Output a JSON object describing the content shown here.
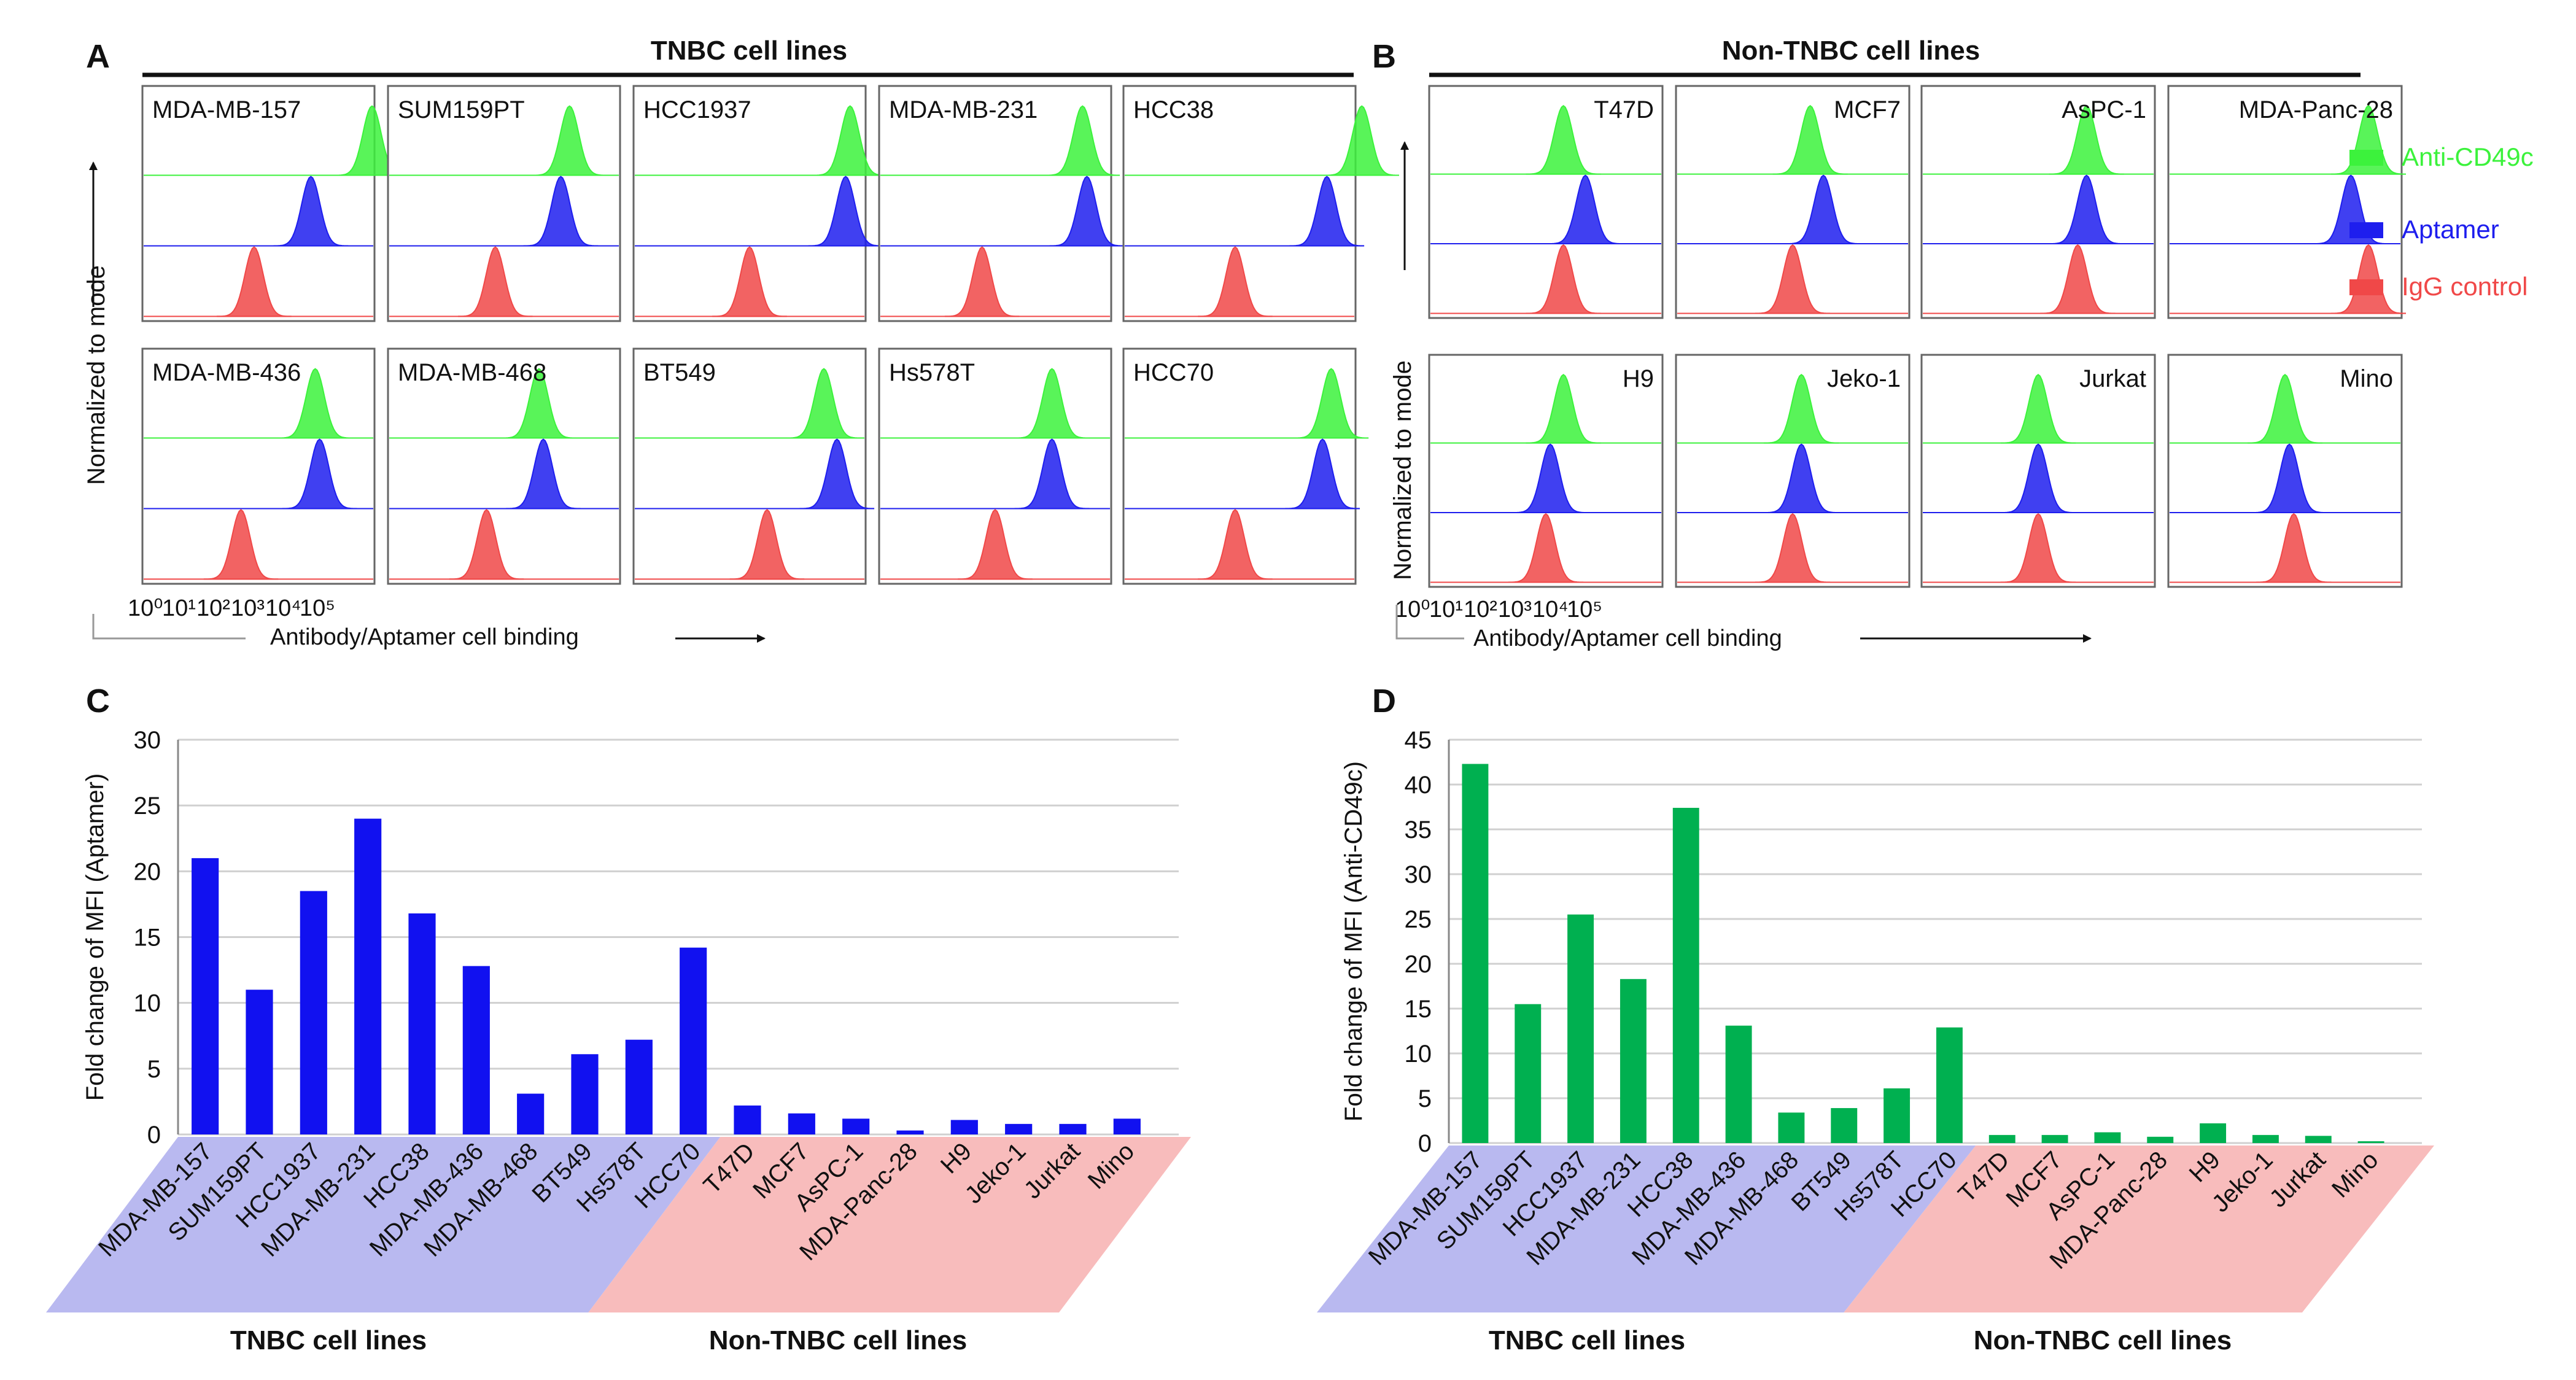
{
  "panel_letters": {
    "A": "A",
    "B": "B",
    "C": "C",
    "D": "D"
  },
  "colors": {
    "anti_cd49c": "#3cf23c",
    "aptamer": "#1e1eee",
    "igg": "#f04848",
    "bar_aptamer": "#1111f0",
    "bar_anti": "#00b050",
    "tnbc_band": "#b9b9f0",
    "nontnbc_band": "#f8bcbc"
  },
  "flow": {
    "tnbc_title": "TNBC cell lines",
    "nontnbc_title": "Non-TNBC cell lines",
    "ylabel": "Normalized to mode",
    "xlabel": "Antibody/Aptamer  cell binding",
    "x_ticks": [
      "10⁰",
      "10¹",
      "10²",
      "10³",
      "10⁴",
      "10⁵"
    ],
    "legend": [
      {
        "key": "anti",
        "label": "Anti-CD49c"
      },
      {
        "key": "apt",
        "label": "Aptamer"
      },
      {
        "key": "igg",
        "label": "IgG control"
      }
    ],
    "tnbc_cells": [
      {
        "name": "MDA-MB-157",
        "g": 5.2,
        "b": 3.8,
        "r": 2.5
      },
      {
        "name": "SUM159PT",
        "g": 4.1,
        "b": 3.9,
        "r": 2.4
      },
      {
        "name": "HCC1937",
        "g": 4.9,
        "b": 4.8,
        "r": 2.6
      },
      {
        "name": "MDA-MB-231",
        "g": 4.6,
        "b": 4.7,
        "r": 2.3
      },
      {
        "name": "HCC38",
        "g": 5.4,
        "b": 4.6,
        "r": 2.5
      },
      {
        "name": "MDA-MB-436",
        "g": 3.9,
        "b": 4.0,
        "r": 2.2
      },
      {
        "name": "MDA-MB-468",
        "g": 3.4,
        "b": 3.5,
        "r": 2.2
      },
      {
        "name": "BT549",
        "g": 4.3,
        "b": 4.6,
        "r": 3.0
      },
      {
        "name": "Hs578T",
        "g": 3.9,
        "b": 3.9,
        "r": 2.6
      },
      {
        "name": "HCC70",
        "g": 4.7,
        "b": 4.5,
        "r": 2.5
      }
    ],
    "nontnbc_cells": [
      {
        "name": "T47D",
        "g": 3.0,
        "b": 3.5,
        "r": 3.0
      },
      {
        "name": "MCF7",
        "g": 3.0,
        "b": 3.3,
        "r": 2.6
      },
      {
        "name": "AsPC-1",
        "g": 3.7,
        "b": 3.7,
        "r": 3.5
      },
      {
        "name": "MDA-Panc-28",
        "g": 4.5,
        "b": 4.1,
        "r": 4.5
      },
      {
        "name": "H9",
        "g": 3.0,
        "b": 2.7,
        "r": 2.6
      },
      {
        "name": "Jeko-1",
        "g": 2.8,
        "b": 2.8,
        "r": 2.6
      },
      {
        "name": "Jurkat",
        "g": 2.6,
        "b": 2.6,
        "r": 2.6
      },
      {
        "name": "Mino",
        "g": 2.6,
        "b": 2.7,
        "r": 2.8
      }
    ]
  },
  "chart_data": [
    {
      "type": "bar",
      "panel": "C",
      "title": "",
      "xlabel": "",
      "ylabel": "Fold change of MFI (Aptamer)",
      "ylim": [
        0,
        30
      ],
      "yticks": [
        0,
        5,
        10,
        15,
        20,
        25,
        30
      ],
      "categories": [
        "MDA-MB-157",
        "SUM159PT",
        "HCC1937",
        "MDA-MB-231",
        "HCC38",
        "MDA-MB-436",
        "MDA-MB-468",
        "BT549",
        "Hs578T",
        "HCC70",
        "T47D",
        "MCF7",
        "AsPC-1",
        "MDA-Panc-28",
        "H9",
        "Jeko-1",
        "Jurkat",
        "Mino"
      ],
      "values": [
        21.0,
        11.0,
        18.5,
        24.0,
        16.8,
        12.8,
        3.1,
        6.1,
        7.2,
        14.2,
        2.2,
        1.6,
        1.2,
        0.3,
        1.1,
        0.8,
        0.8,
        1.2
      ],
      "groups": [
        {
          "label": "TNBC cell lines",
          "count": 10
        },
        {
          "label": "Non-TNBC cell lines",
          "count": 8
        }
      ],
      "grid": true
    },
    {
      "type": "bar",
      "panel": "D",
      "title": "",
      "xlabel": "",
      "ylabel": "Fold change of MFI (Anti-CD49c)",
      "ylim": [
        0,
        45
      ],
      "yticks": [
        0,
        5,
        10,
        15,
        20,
        25,
        30,
        35,
        40,
        45
      ],
      "categories": [
        "MDA-MB-157",
        "SUM159PT",
        "HCC1937",
        "MDA-MB-231",
        "HCC38",
        "MDA-MB-436",
        "MDA-MB-468",
        "BT549",
        "Hs578T",
        "HCC70",
        "T47D",
        "MCF7",
        "AsPC-1",
        "MDA-Panc-28",
        "H9",
        "Jeko-1",
        "Jurkat",
        "Mino"
      ],
      "values": [
        42.3,
        15.5,
        25.5,
        18.3,
        37.4,
        13.1,
        3.4,
        3.9,
        6.1,
        12.9,
        0.9,
        0.9,
        1.2,
        0.7,
        2.2,
        0.9,
        0.8,
        0.2
      ],
      "groups": [
        {
          "label": "TNBC cell lines",
          "count": 10
        },
        {
          "label": "Non-TNBC cell lines",
          "count": 8
        }
      ],
      "grid": true
    }
  ]
}
